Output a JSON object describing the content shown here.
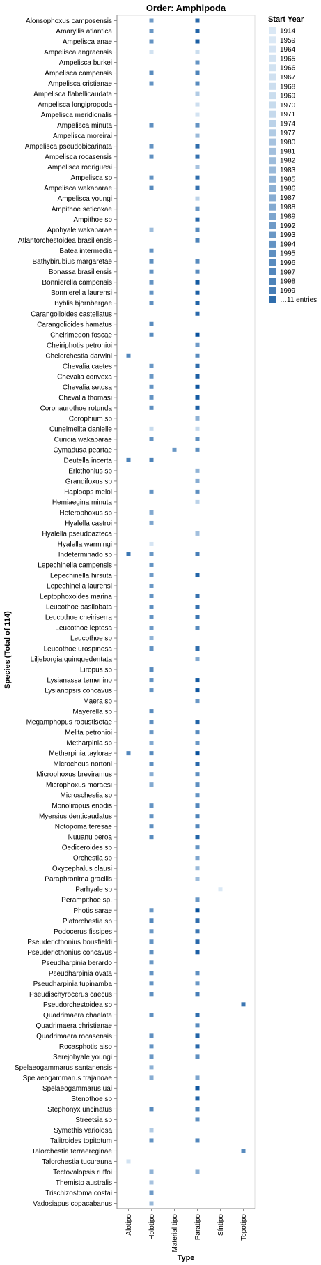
{
  "chart_data": {
    "type": "heatmap",
    "title": "Order: Amphipoda",
    "xlabel": "Type",
    "ylabel": "Species (Total of 114)",
    "x_categories": [
      "Alotipo",
      "Holotipo",
      "Material tipo",
      "Paratipo",
      "Síntipo",
      "Topotipo"
    ],
    "y_categories": [
      "Alonsophoxus camposensis",
      "Amaryllis atlantica",
      "Ampelisca anae",
      "Ampelisca angraensis",
      "Ampelisca burkei",
      "Ampelisca campensis",
      "Ampelisca cristianae",
      "Ampelisca flabellicaudata",
      "Ampelisca longipropoda",
      "Ampelisca meridionalis",
      "Ampelisca minuta",
      "Ampelisca moreirai",
      "Ampelisca pseudobicarinata",
      "Ampelisca rocasensis",
      "Ampelisca rodriguesi",
      "Ampelisca sp",
      "Ampelisca wakabarae",
      "Ampelisca youngi",
      "Ampithoe seticoxae",
      "Ampithoe sp",
      "Apohyale wakabarae",
      "Atlantorchestoidea brasiliensis",
      "Batea intermedia",
      "Bathybirubius margaretae",
      "Bonassa brasiliensis",
      "Bonnierella campensis",
      "Bonnierella laurensi",
      "Byblis bjornbergae",
      "Carangolioides castellatus",
      "Carangolioides hamatus",
      "Cheirimedon foscae",
      "Cheiriphotis petronioi",
      "Chelorchestia darwini",
      "Chevalia caetes",
      "Chevalia convexa",
      "Chevalia setosa",
      "Chevalia thomasi",
      "Coronaurothoe rotunda",
      "Corophium sp",
      "Cuneimelita danielle",
      "Curidia wakabarae",
      "Cymadusa peartae",
      "Deutella incerta",
      "Ericthonius sp",
      "Grandifoxus sp",
      "Haploops meloi",
      "Hemiaegina minuta",
      "Heterophoxus sp",
      "Hyalella castroi",
      "Hyalella pseudoazteca",
      "Hyalella warmingi",
      "Indeterminado sp",
      "Lepechinella campensis",
      "Lepechinella hirsuta",
      "Lepechinella laurensi",
      "Leptophoxoides marina",
      "Leucothoe basilobata",
      "Leucothoe cheiriserra",
      "Leucothoe leptosa",
      "Leucothoe sp",
      "Leucothoe urospinosa",
      "Liljeborgia quinquedentata",
      "Liropus sp",
      "Lysianassa temenino",
      "Lysianopsis concavus",
      "Maera sp",
      "Mayerella sp",
      "Megamphopus robustisetae",
      "Melita petronioi",
      "Metharpinia sp",
      "Metharpinia taylorae",
      "Microcheus nortoni",
      "Microphoxus breviramus",
      "Microphoxus moraesi",
      "Microschestia sp",
      "Monoliropus enodis",
      "Myersius denticaudatus",
      "Notopoma teresae",
      "Nuuanu peroa",
      "Oediceroides sp",
      "Orchestia sp",
      "Oxycephalus clausi",
      "Paraphronima gracilis",
      "Parhyale sp",
      "Perampithoe sp.",
      "Photis sarae",
      "Platorchestia sp",
      "Podocerus fissipes",
      "Pseudericthonius bousfieldi",
      "Pseudericthonius concavus",
      "Pseudharpinia berardo",
      "Pseudharpinia ovata",
      "Pseudharpinia tupinamba",
      "Pseudischyrocerus caecus",
      "Pseudorchestoidea sp",
      "Quadrimaera chaelata",
      "Quadrimaera christianae",
      "Quadrimaera rocasensis",
      "Rocasphotis aiso",
      "Serejohyale youngi",
      "Spelaeogammarus santanensis",
      "Spelaeogammarus trajanoae",
      "Spelaeogammarus uai",
      "Stenothoe sp",
      "Stephonyx uncinatus",
      "Streetsia sp",
      "Symethis variolosa",
      "Talitroides topitotum",
      "Talorchestia terraereginae",
      "Talorchestia tucurauna",
      "Tectovalopsis ruffoi",
      "Themisto australis",
      "Trischizostoma costai",
      "Vadosiapus copacabanus"
    ],
    "cells": [
      [
        "Alonsophoxus camposensis",
        "Holotipo",
        1992
      ],
      [
        "Alonsophoxus camposensis",
        "Paratipo",
        2004
      ],
      [
        "Amaryllis atlantica",
        "Holotipo",
        1993
      ],
      [
        "Amaryllis atlantica",
        "Paratipo",
        2005
      ],
      [
        "Ampelisca anae",
        "Holotipo",
        1994
      ],
      [
        "Ampelisca anae",
        "Paratipo",
        2006
      ],
      [
        "Ampelisca angraensis",
        "Holotipo",
        1966
      ],
      [
        "Ampelisca angraensis",
        "Paratipo",
        1969
      ],
      [
        "Ampelisca burkei",
        "Paratipo",
        1994
      ],
      [
        "Ampelisca campensis",
        "Holotipo",
        1996
      ],
      [
        "Ampelisca campensis",
        "Paratipo",
        1998
      ],
      [
        "Ampelisca cristianae",
        "Holotipo",
        1994
      ],
      [
        "Ampelisca cristianae",
        "Paratipo",
        1996
      ],
      [
        "Ampelisca flabellicaudata",
        "Paratipo",
        1977
      ],
      [
        "Ampelisca longipropoda",
        "Paratipo",
        1968
      ],
      [
        "Ampelisca meridionalis",
        "Paratipo",
        1965
      ],
      [
        "Ampelisca minuta",
        "Holotipo",
        1995
      ],
      [
        "Ampelisca minuta",
        "Paratipo",
        1994
      ],
      [
        "Ampelisca moreirai",
        "Paratipo",
        1983
      ],
      [
        "Ampelisca pseudobicarinata",
        "Holotipo",
        1994
      ],
      [
        "Ampelisca pseudobicarinata",
        "Paratipo",
        2003
      ],
      [
        "Ampelisca rocasensis",
        "Holotipo",
        1995
      ],
      [
        "Ampelisca rocasensis",
        "Paratipo",
        2002
      ],
      [
        "Ampelisca rodriguesi",
        "Paratipo",
        1980
      ],
      [
        "Ampelisca sp",
        "Holotipo",
        1994
      ],
      [
        "Ampelisca sp",
        "Paratipo",
        2003
      ],
      [
        "Ampelisca wakabarae",
        "Holotipo",
        1996
      ],
      [
        "Ampelisca wakabarae",
        "Paratipo",
        2002
      ],
      [
        "Ampelisca youngi",
        "Paratipo",
        1974
      ],
      [
        "Ampithoe seticoxae",
        "Paratipo",
        1993
      ],
      [
        "Ampithoe sp",
        "Paratipo",
        2004
      ],
      [
        "Apohyale wakabarae",
        "Holotipo",
        1982
      ],
      [
        "Apohyale wakabarae",
        "Paratipo",
        1996
      ],
      [
        "Atlantorchestoidea brasiliensis",
        "Paratipo",
        1998
      ],
      [
        "Batea intermedia",
        "Holotipo",
        1994
      ],
      [
        "Bathybirubius margaretae",
        "Holotipo",
        1995
      ],
      [
        "Bathybirubius margaretae",
        "Paratipo",
        1996
      ],
      [
        "Bonassa brasiliensis",
        "Holotipo",
        1994
      ],
      [
        "Bonassa brasiliensis",
        "Paratipo",
        1996
      ],
      [
        "Bonnierella campensis",
        "Holotipo",
        1994
      ],
      [
        "Bonnierella campensis",
        "Paratipo",
        2007
      ],
      [
        "Bonnierella laurensi",
        "Holotipo",
        1994
      ],
      [
        "Bonnierella laurensi",
        "Paratipo",
        2006
      ],
      [
        "Byblis bjornbergae",
        "Holotipo",
        1995
      ],
      [
        "Byblis bjornbergae",
        "Paratipo",
        2005
      ],
      [
        "Carangolioides castellatus",
        "Paratipo",
        2004
      ],
      [
        "Carangolioides hamatus",
        "Holotipo",
        1996
      ],
      [
        "Cheirimedon foscae",
        "Holotipo",
        1996
      ],
      [
        "Cheirimedon foscae",
        "Paratipo",
        2009
      ],
      [
        "Cheiriphotis petronioi",
        "Paratipo",
        1992
      ],
      [
        "Chelorchestia darwini",
        "Alotipo",
        1997
      ],
      [
        "Chelorchestia darwini",
        "Paratipo",
        1996
      ],
      [
        "Chevalia caetes",
        "Holotipo",
        1993
      ],
      [
        "Chevalia caetes",
        "Paratipo",
        2003
      ],
      [
        "Chevalia convexa",
        "Holotipo",
        1993
      ],
      [
        "Chevalia convexa",
        "Paratipo",
        2006
      ],
      [
        "Chevalia setosa",
        "Holotipo",
        1994
      ],
      [
        "Chevalia setosa",
        "Paratipo",
        2008
      ],
      [
        "Chevalia thomasi",
        "Holotipo",
        1994
      ],
      [
        "Chevalia thomasi",
        "Paratipo",
        2007
      ],
      [
        "Coronaurothoe rotunda",
        "Holotipo",
        1995
      ],
      [
        "Coronaurothoe rotunda",
        "Paratipo",
        2006
      ],
      [
        "Corophium sp",
        "Paratipo",
        1986
      ],
      [
        "Cuneimelita danielle",
        "Holotipo",
        1970
      ],
      [
        "Cuneimelita danielle",
        "Paratipo",
        1971
      ],
      [
        "Curidia wakabarae",
        "Holotipo",
        1994
      ],
      [
        "Curidia wakabarae",
        "Paratipo",
        1995
      ],
      [
        "Cymadusa peartae",
        "Material tipo",
        1993
      ],
      [
        "Cymadusa peartae",
        "Paratipo",
        1995
      ],
      [
        "Deutella incerta",
        "Alotipo",
        1998
      ],
      [
        "Deutella incerta",
        "Holotipo",
        1998
      ],
      [
        "Ericthonius sp",
        "Paratipo",
        1985
      ],
      [
        "Grandifoxus sp",
        "Paratipo",
        1987
      ],
      [
        "Haploops meloi",
        "Holotipo",
        1994
      ],
      [
        "Haploops meloi",
        "Paratipo",
        1995
      ],
      [
        "Hemiaegina minuta",
        "Paratipo",
        1974
      ],
      [
        "Heterophoxus sp",
        "Holotipo",
        1988
      ],
      [
        "Hyalella castroi",
        "Holotipo",
        1989
      ],
      [
        "Hyalella pseudoazteca",
        "Paratipo",
        1981
      ],
      [
        "Hyalella warmingi",
        "Holotipo",
        1964
      ],
      [
        "Indeterminado sp",
        "Alotipo",
        2001
      ],
      [
        "Indeterminado sp",
        "Holotipo",
        1993
      ],
      [
        "Indeterminado sp",
        "Paratipo",
        1999
      ],
      [
        "Lepechinella campensis",
        "Holotipo",
        1994
      ],
      [
        "Lepechinella hirsuta",
        "Holotipo",
        1992
      ],
      [
        "Lepechinella hirsuta",
        "Paratipo",
        2005
      ],
      [
        "Lepechinella laurensi",
        "Holotipo",
        1993
      ],
      [
        "Leptophoxoides marina",
        "Holotipo",
        1994
      ],
      [
        "Leptophoxoides marina",
        "Paratipo",
        2002
      ],
      [
        "Leucothoe basilobata",
        "Holotipo",
        1995
      ],
      [
        "Leucothoe basilobata",
        "Paratipo",
        2002
      ],
      [
        "Leucothoe cheiriserra",
        "Holotipo",
        1994
      ],
      [
        "Leucothoe cheiriserra",
        "Paratipo",
        2001
      ],
      [
        "Leucothoe leptosa",
        "Holotipo",
        1992
      ],
      [
        "Leucothoe leptosa",
        "Paratipo",
        1996
      ],
      [
        "Leucothoe sp",
        "Holotipo",
        1985
      ],
      [
        "Leucothoe urospinosa",
        "Holotipo",
        1994
      ],
      [
        "Leucothoe urospinosa",
        "Paratipo",
        2003
      ],
      [
        "Liljeborgia quinquedentata",
        "Paratipo",
        1988
      ],
      [
        "Liropus sp",
        "Holotipo",
        1996
      ],
      [
        "Lysianassa temenino",
        "Holotipo",
        1994
      ],
      [
        "Lysianassa temenino",
        "Paratipo",
        2007
      ],
      [
        "Lysianopsis concavus",
        "Holotipo",
        1994
      ],
      [
        "Lysianopsis concavus",
        "Paratipo",
        2008
      ],
      [
        "Maera sp",
        "Paratipo",
        1993
      ],
      [
        "Mayerella sp",
        "Holotipo",
        1996
      ],
      [
        "Megamphopus robustisetae",
        "Holotipo",
        1995
      ],
      [
        "Megamphopus robustisetae",
        "Paratipo",
        2005
      ],
      [
        "Melita petronioi",
        "Holotipo",
        1993
      ],
      [
        "Melita petronioi",
        "Paratipo",
        1996
      ],
      [
        "Metharpinia sp",
        "Holotipo",
        1988
      ],
      [
        "Metharpinia sp",
        "Paratipo",
        1993
      ],
      [
        "Metharpinia taylorae",
        "Alotipo",
        1997
      ],
      [
        "Metharpinia taylorae",
        "Holotipo",
        1996
      ],
      [
        "Metharpinia taylorae",
        "Paratipo",
        2009
      ],
      [
        "Microcheus nortoni",
        "Holotipo",
        1995
      ],
      [
        "Microcheus nortoni",
        "Paratipo",
        2004
      ],
      [
        "Microphoxus breviramus",
        "Holotipo",
        1987
      ],
      [
        "Microphoxus breviramus",
        "Paratipo",
        1995
      ],
      [
        "Microphoxus moraesi",
        "Holotipo",
        1988
      ],
      [
        "Microphoxus moraesi",
        "Paratipo",
        1995
      ],
      [
        "Microschestia sp",
        "Paratipo",
        1994
      ],
      [
        "Monoliropus enodis",
        "Holotipo",
        1994
      ],
      [
        "Monoliropus enodis",
        "Paratipo",
        1997
      ],
      [
        "Myersius denticaudatus",
        "Holotipo",
        1994
      ],
      [
        "Myersius denticaudatus",
        "Paratipo",
        1998
      ],
      [
        "Notopoma teresae",
        "Holotipo",
        1995
      ],
      [
        "Notopoma teresae",
        "Paratipo",
        1997
      ],
      [
        "Nuuanu peroa",
        "Holotipo",
        1996
      ],
      [
        "Nuuanu peroa",
        "Paratipo",
        2005
      ],
      [
        "Oediceroides sp",
        "Paratipo",
        1994
      ],
      [
        "Orchestia sp",
        "Paratipo",
        1989
      ],
      [
        "Oxycephalus clausi",
        "Paratipo",
        1983
      ],
      [
        "Paraphronima gracilis",
        "Paratipo",
        1982
      ],
      [
        "Parhyale sp",
        "Síntipo",
        1959
      ],
      [
        "Perampithoe sp.",
        "Paratipo",
        1993
      ],
      [
        "Photis sarae",
        "Holotipo",
        1993
      ],
      [
        "Photis sarae",
        "Paratipo",
        2009
      ],
      [
        "Platorchestia sp",
        "Holotipo",
        1997
      ],
      [
        "Platorchestia sp",
        "Paratipo",
        2003
      ],
      [
        "Podocerus fissipes",
        "Holotipo",
        1993
      ],
      [
        "Podocerus fissipes",
        "Paratipo",
        2001
      ],
      [
        "Pseudericthonius bousfieldi",
        "Holotipo",
        1994
      ],
      [
        "Pseudericthonius bousfieldi",
        "Paratipo",
        2004
      ],
      [
        "Pseudericthonius concavus",
        "Holotipo",
        1995
      ],
      [
        "Pseudericthonius concavus",
        "Paratipo",
        2006
      ],
      [
        "Pseudharpinia berardo",
        "Holotipo",
        1993
      ],
      [
        "Pseudharpinia ovata",
        "Holotipo",
        1994
      ],
      [
        "Pseudharpinia ovata",
        "Paratipo",
        1995
      ],
      [
        "Pseudharpinia tupinamba",
        "Holotipo",
        1994
      ],
      [
        "Pseudharpinia tupinamba",
        "Paratipo",
        1993
      ],
      [
        "Pseudischyrocerus caecus",
        "Holotipo",
        1995
      ],
      [
        "Pseudischyrocerus caecus",
        "Paratipo",
        1999
      ],
      [
        "Pseudorchestoidea sp",
        "Topotipo",
        2001
      ],
      [
        "Quadrimaera chaelata",
        "Holotipo",
        1995
      ],
      [
        "Quadrimaera chaelata",
        "Paratipo",
        2003
      ],
      [
        "Quadrimaera christianae",
        "Paratipo",
        1996
      ],
      [
        "Quadrimaera rocasensis",
        "Holotipo",
        1995
      ],
      [
        "Quadrimaera rocasensis",
        "Paratipo",
        2005
      ],
      [
        "Rocasphotis aiso",
        "Holotipo",
        1994
      ],
      [
        "Rocasphotis aiso",
        "Paratipo",
        2004
      ],
      [
        "Serejohyale youngi",
        "Holotipo",
        1993
      ],
      [
        "Serejohyale youngi",
        "Paratipo",
        1995
      ],
      [
        "Spelaeogammarus santanensis",
        "Holotipo",
        1986
      ],
      [
        "Spelaeogammarus trajanoae",
        "Holotipo",
        1987
      ],
      [
        "Spelaeogammarus trajanoae",
        "Paratipo",
        1989
      ],
      [
        "Spelaeogammarus uai",
        "Paratipo",
        2008
      ],
      [
        "Stenothoe sp",
        "Paratipo",
        2005
      ],
      [
        "Stephonyx uncinatus",
        "Holotipo",
        1996
      ],
      [
        "Stephonyx uncinatus",
        "Paratipo",
        1998
      ],
      [
        "Streetsia sp",
        "Paratipo",
        1995
      ],
      [
        "Symethis variolosa",
        "Holotipo",
        1977
      ],
      [
        "Talitroides topitotum",
        "Holotipo",
        1994
      ],
      [
        "Talitroides topitotum",
        "Paratipo",
        1997
      ],
      [
        "Talorchestia terraereginae",
        "Topotipo",
        1996
      ],
      [
        "Talorchestia tucurauna",
        "Alotipo",
        1966
      ],
      [
        "Tectovalopsis ruffoi",
        "Holotipo",
        1985
      ],
      [
        "Tectovalopsis ruffoi",
        "Paratipo",
        1986
      ],
      [
        "Themisto australis",
        "Holotipo",
        1980
      ],
      [
        "Trischizostoma costai",
        "Holotipo",
        1992
      ],
      [
        "Vadosiapus copacabanus",
        "Holotipo",
        1983
      ]
    ],
    "legend": {
      "title": "Start Year",
      "position": "right",
      "entries": [
        "1914",
        "1959",
        "1964",
        "1965",
        "1966",
        "1967",
        "1968",
        "1969",
        "1970",
        "1971",
        "1974",
        "1977",
        "1980",
        "1981",
        "1982",
        "1983",
        "1985",
        "1986",
        "1987",
        "1988",
        "1989",
        "1992",
        "1993",
        "1994",
        "1995",
        "1996",
        "1997",
        "1998",
        "1999",
        "…11 entries"
      ]
    },
    "colors": {
      "light": "#dae8f5",
      "dark": "#08519c"
    },
    "grid": false
  }
}
